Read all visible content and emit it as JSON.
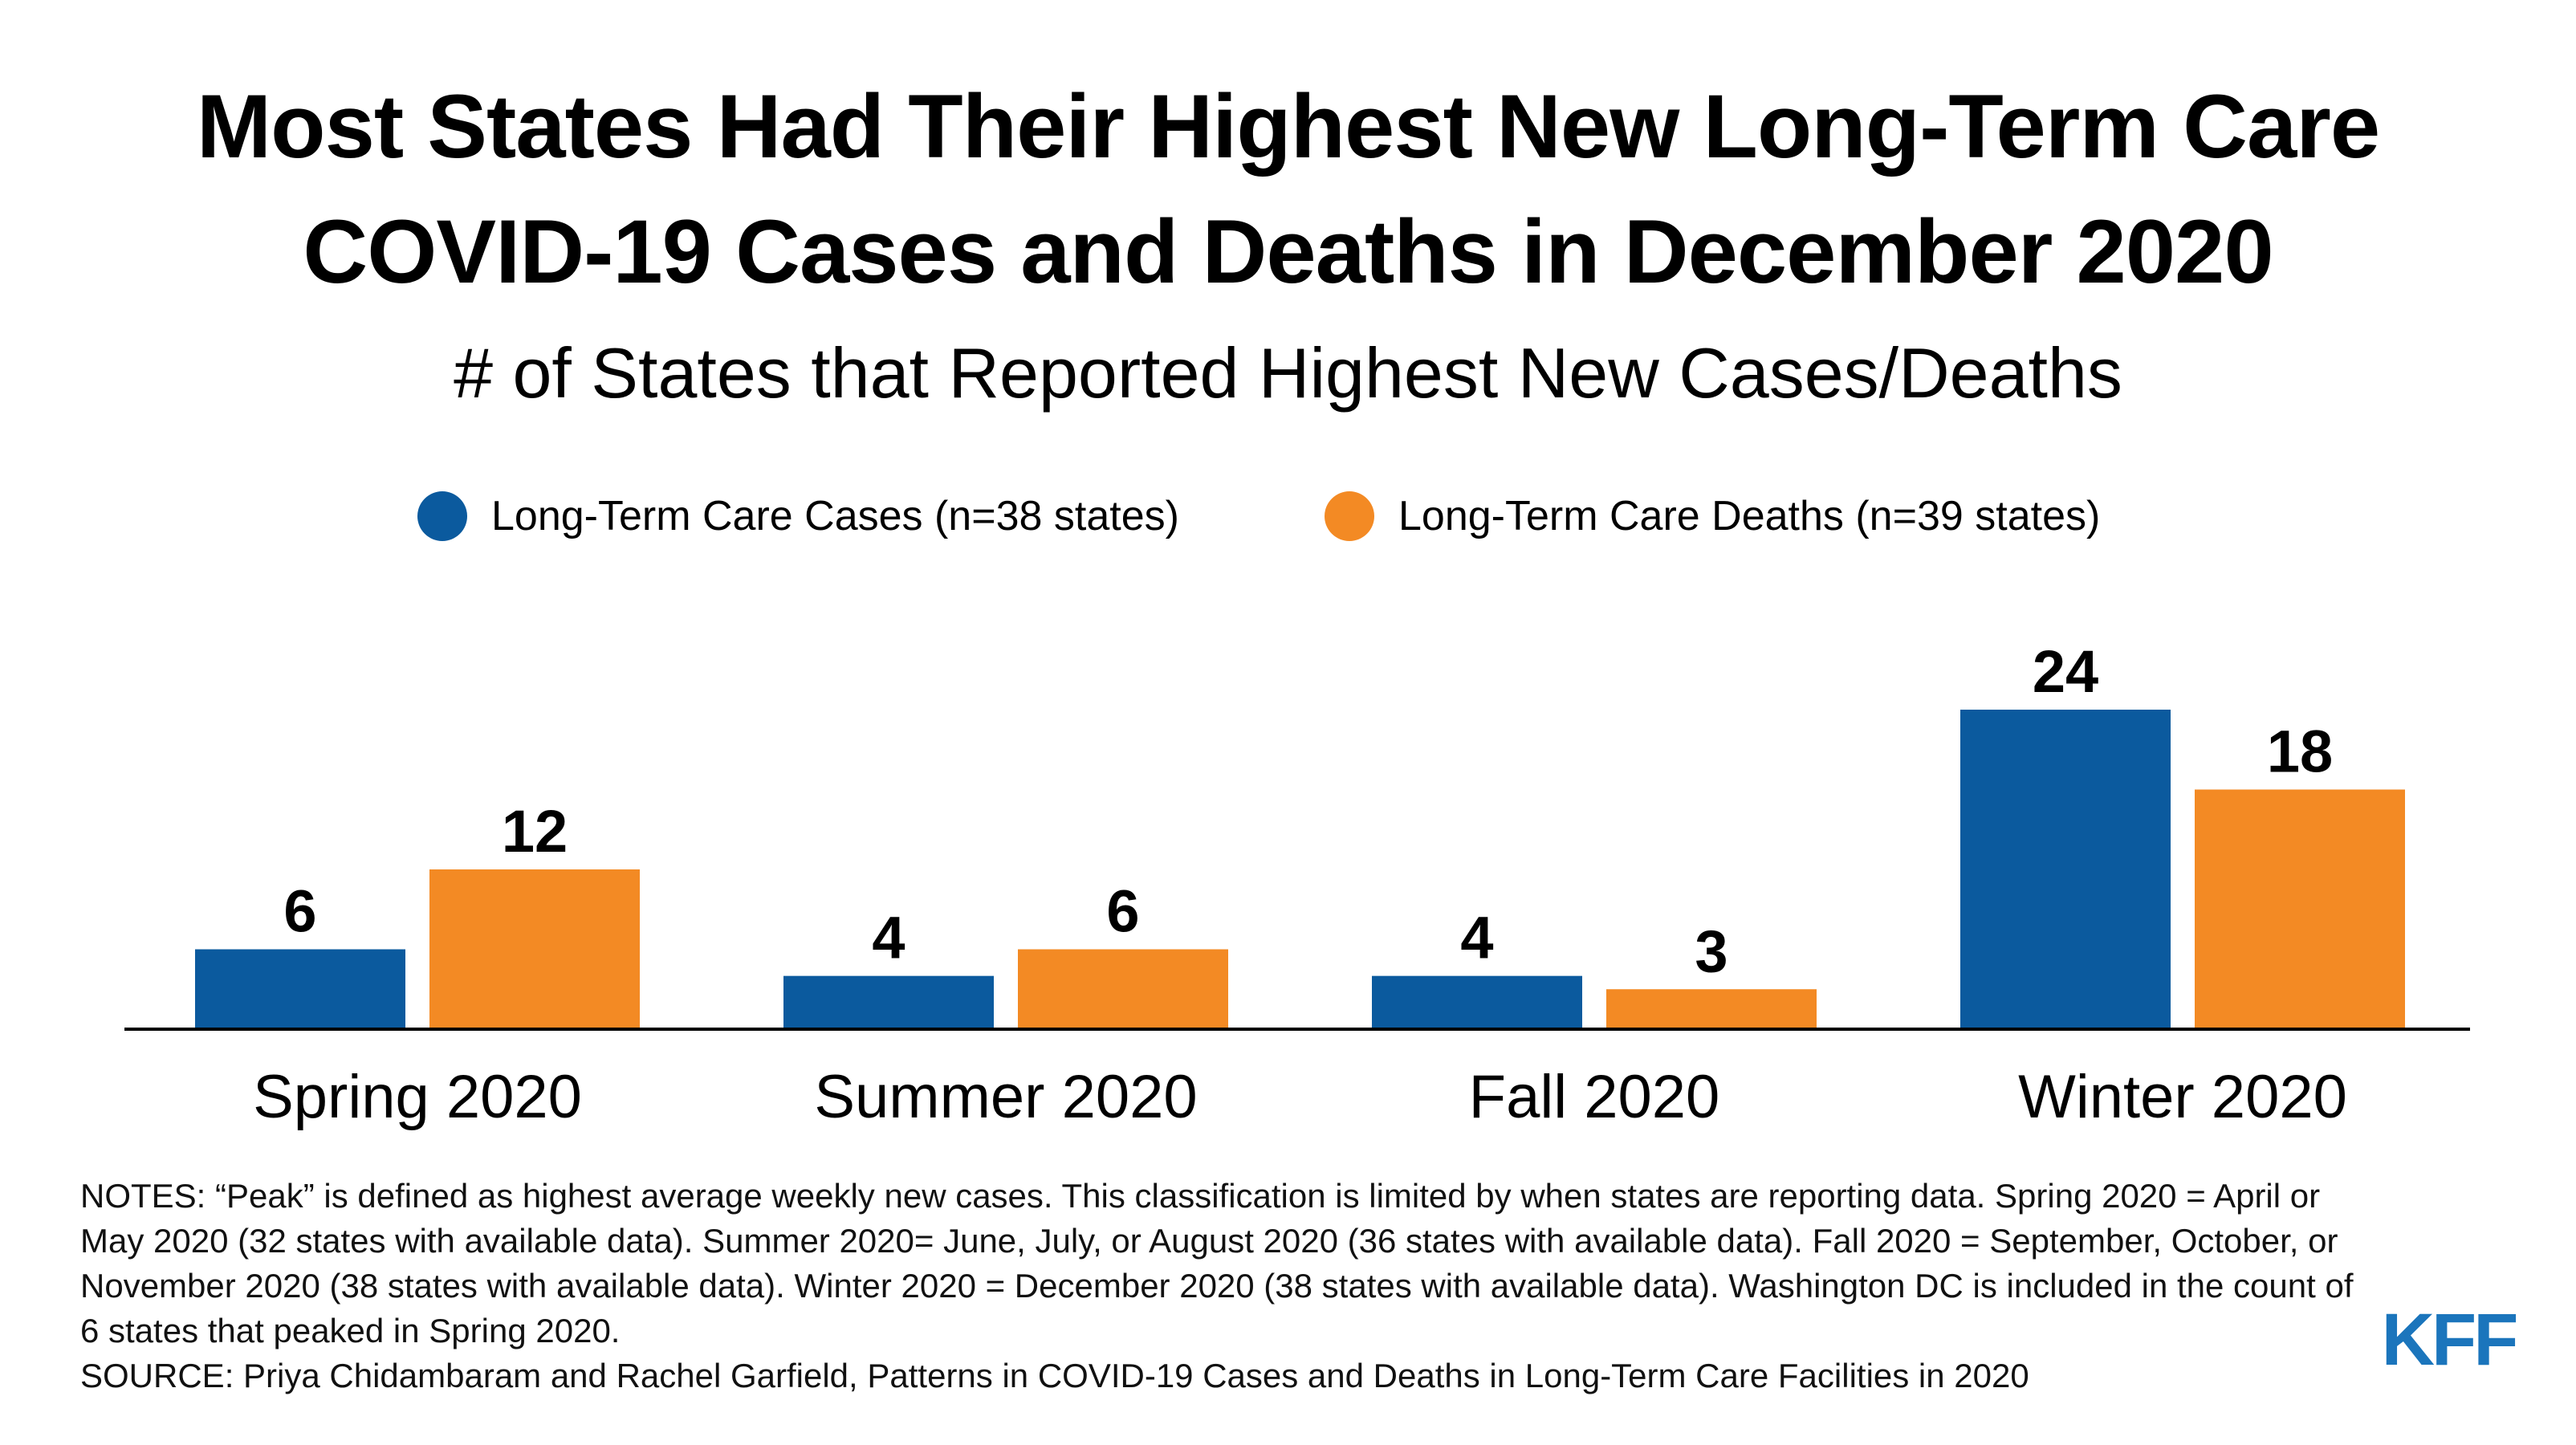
{
  "title": {
    "line1": "Most States Had Their Highest New Long-Term Care",
    "line2": "COVID-19 Cases and Deaths in December 2020"
  },
  "colors": {
    "cases": "#0b5a9e",
    "deaths": "#f38a24",
    "axis": "#000000",
    "logo": "#1b75bc"
  },
  "chart_data": {
    "type": "bar",
    "subtitle": "# of States that Reported Highest New Cases/Deaths",
    "categories": [
      "Spring 2020",
      "Summer 2020",
      "Fall 2020",
      "Winter 2020"
    ],
    "series": [
      {
        "name": "Long-Term Care Cases (n=38 states)",
        "values": [
          6,
          4,
          4,
          24
        ],
        "color": "#0b5a9e"
      },
      {
        "name": "Long-Term Care Deaths (n=39 states)",
        "values": [
          12,
          6,
          3,
          18
        ],
        "color": "#f38a24"
      }
    ],
    "ylim": [
      0,
      24
    ],
    "grid": false,
    "legend_position": "top"
  },
  "notes": {
    "notes_text": "NOTES: “Peak” is defined as highest average weekly new cases. This classification is limited by when states are reporting data. Spring 2020 = April or May 2020 (32 states with available data). Summer 2020= June, July, or August 2020 (36 states with available data). Fall 2020 = September, October, or November 2020 (38 states with available data). Winter 2020 = December 2020 (38 states with available data). Washington DC is included in the count of 6 states that peaked in Spring 2020.",
    "source_text": "SOURCE: Priya Chidambaram and Rachel Garfield, Patterns in COVID-19 Cases and Deaths in Long-Term Care Facilities in 2020"
  },
  "logo": {
    "text": "KFF"
  }
}
